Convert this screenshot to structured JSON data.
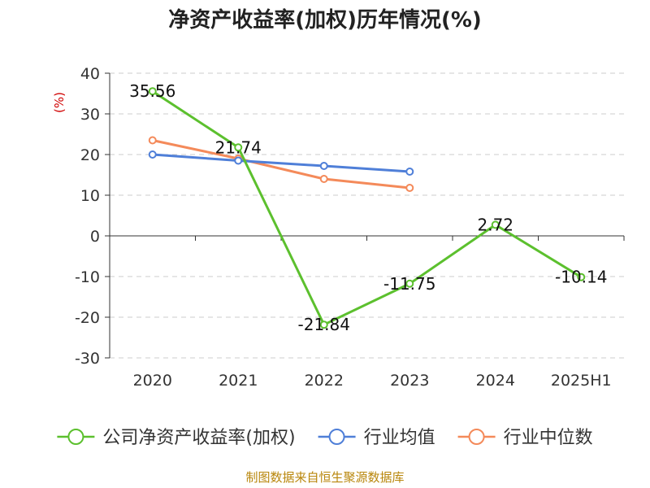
{
  "chart_data": {
    "type": "line",
    "title": "净资产收益率(加权)历年情况(%)",
    "ylabel": "(%)",
    "categories": [
      "2020",
      "2021",
      "2022",
      "2023",
      "2024",
      "2025H1"
    ],
    "ylim": [
      -30,
      40
    ],
    "yticks": [
      40,
      30,
      20,
      10,
      0,
      -10,
      -20,
      -30
    ],
    "ytick_labels": [
      "40",
      "30",
      "20",
      "10",
      "0",
      "-10",
      "-20",
      "-30"
    ],
    "grid": true,
    "legend_position": "bottom",
    "series": [
      {
        "name": "公司净资产收益率(加权)",
        "color": "#5cc02e",
        "values": [
          35.56,
          21.74,
          -21.84,
          -11.75,
          2.72,
          -10.14
        ],
        "data_labels": [
          "35.56",
          "21.74",
          "-21.84",
          "-11.75",
          "2.72",
          "-10.14"
        ]
      },
      {
        "name": "行业均值",
        "color": "#4f7fd8",
        "values": [
          20.0,
          18.5,
          17.2,
          15.8,
          null,
          null
        ]
      },
      {
        "name": "行业中位数",
        "color": "#f48a5a",
        "values": [
          23.5,
          19.0,
          14.0,
          11.8,
          null,
          null
        ]
      }
    ],
    "source": "制图数据来自恒生聚源数据库"
  }
}
